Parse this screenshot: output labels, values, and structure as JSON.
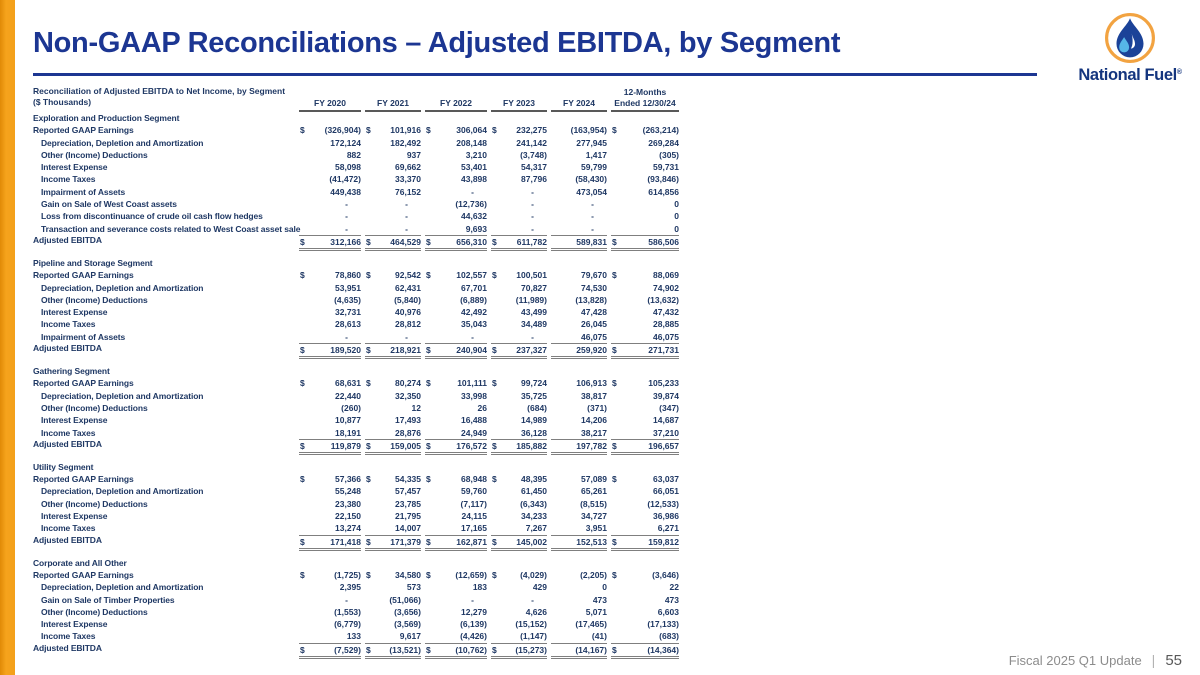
{
  "header": {
    "title": "Non-GAAP Reconciliations – Adjusted EBITDA, by Segment",
    "logo_text": "National Fuel",
    "logo_reg": "®"
  },
  "colors": {
    "title_blue": "#1c3692",
    "table_navy": "#1f3864",
    "accent_orange": "#f3a01a",
    "rule_gray": "#7f7f7f"
  },
  "table": {
    "caption_line1": "Reconciliation of Adjusted EBITDA to Net Income, by Segment",
    "caption_line2": "($ Thousands)",
    "dollar_columns": [
      true,
      true,
      true,
      true,
      false,
      true
    ],
    "columns": [
      {
        "line1": "",
        "line2": "FY 2020"
      },
      {
        "line1": "",
        "line2": "FY 2021"
      },
      {
        "line1": "",
        "line2": "FY 2022"
      },
      {
        "line1": "",
        "line2": "FY 2023"
      },
      {
        "line1": "",
        "line2": "FY 2024"
      },
      {
        "line1": "12-Months",
        "line2": "Ended 12/30/24"
      }
    ],
    "segments": [
      {
        "name": "Exploration and Production Segment",
        "rows": [
          {
            "label": "Reported GAAP Earnings",
            "indent": false,
            "dollar": true,
            "values": [
              "(326,904)",
              "101,916",
              "306,064",
              "232,275",
              "(163,954)",
              "(263,214)"
            ]
          },
          {
            "label": "Depreciation, Depletion and Amortization",
            "indent": true,
            "values": [
              "172,124",
              "182,492",
              "208,148",
              "241,142",
              "277,945",
              "269,284"
            ]
          },
          {
            "label": "Other (Income) Deductions",
            "indent": true,
            "values": [
              "882",
              "937",
              "3,210",
              "(3,748)",
              "1,417",
              "(305)"
            ]
          },
          {
            "label": "Interest Expense",
            "indent": true,
            "values": [
              "58,098",
              "69,662",
              "53,401",
              "54,317",
              "59,799",
              "59,731"
            ]
          },
          {
            "label": "Income Taxes",
            "indent": true,
            "values": [
              "(41,472)",
              "33,370",
              "43,898",
              "87,796",
              "(58,430)",
              "(93,846)"
            ]
          },
          {
            "label": "Impairment of Assets",
            "indent": true,
            "values": [
              "449,438",
              "76,152",
              "-",
              "-",
              "473,054",
              "614,856"
            ]
          },
          {
            "label": "Gain on Sale of West Coast assets",
            "indent": true,
            "values": [
              "-",
              "-",
              "(12,736)",
              "-",
              "-",
              "0"
            ]
          },
          {
            "label": "Loss from discontinuance of crude oil cash flow hedges",
            "indent": true,
            "values": [
              "-",
              "-",
              "44,632",
              "-",
              "-",
              "0"
            ]
          },
          {
            "label": "Transaction and severance costs related to West Coast asset sale",
            "indent": true,
            "values": [
              "-",
              "-",
              "9,693",
              "-",
              "-",
              "0"
            ]
          },
          {
            "label": "Adjusted EBITDA",
            "total": true,
            "dollar": true,
            "values": [
              "312,166",
              "464,529",
              "656,310",
              "611,782",
              "589,831",
              "586,506"
            ]
          }
        ]
      },
      {
        "name": "Pipeline and Storage Segment",
        "rows": [
          {
            "label": "Reported GAAP Earnings",
            "indent": false,
            "dollar": true,
            "values": [
              "78,860",
              "92,542",
              "102,557",
              "100,501",
              "79,670",
              "88,069"
            ]
          },
          {
            "label": "Depreciation, Depletion and Amortization",
            "indent": true,
            "values": [
              "53,951",
              "62,431",
              "67,701",
              "70,827",
              "74,530",
              "74,902"
            ]
          },
          {
            "label": "Other (Income) Deductions",
            "indent": true,
            "values": [
              "(4,635)",
              "(5,840)",
              "(6,889)",
              "(11,989)",
              "(13,828)",
              "(13,632)"
            ]
          },
          {
            "label": "Interest Expense",
            "indent": true,
            "values": [
              "32,731",
              "40,976",
              "42,492",
              "43,499",
              "47,428",
              "47,432"
            ]
          },
          {
            "label": "Income Taxes",
            "indent": true,
            "values": [
              "28,613",
              "28,812",
              "35,043",
              "34,489",
              "26,045",
              "28,885"
            ]
          },
          {
            "label": "Impairment of Assets",
            "indent": true,
            "values": [
              "-",
              "-",
              "-",
              "-",
              "46,075",
              "46,075"
            ]
          },
          {
            "label": "Adjusted EBITDA",
            "total": true,
            "dollar": true,
            "values": [
              "189,520",
              "218,921",
              "240,904",
              "237,327",
              "259,920",
              "271,731"
            ]
          }
        ]
      },
      {
        "name": "Gathering Segment",
        "rows": [
          {
            "label": "Reported GAAP Earnings",
            "indent": false,
            "dollar": true,
            "values": [
              "68,631",
              "80,274",
              "101,111",
              "99,724",
              "106,913",
              "105,233"
            ]
          },
          {
            "label": "Depreciation, Depletion and Amortization",
            "indent": true,
            "values": [
              "22,440",
              "32,350",
              "33,998",
              "35,725",
              "38,817",
              "39,874"
            ]
          },
          {
            "label": "Other (Income) Deductions",
            "indent": true,
            "values": [
              "(260)",
              "12",
              "26",
              "(684)",
              "(371)",
              "(347)"
            ]
          },
          {
            "label": "Interest Expense",
            "indent": true,
            "values": [
              "10,877",
              "17,493",
              "16,488",
              "14,989",
              "14,206",
              "14,687"
            ]
          },
          {
            "label": "Income Taxes",
            "indent": true,
            "values": [
              "18,191",
              "28,876",
              "24,949",
              "36,128",
              "38,217",
              "37,210"
            ]
          },
          {
            "label": "Adjusted EBITDA",
            "total": true,
            "dollar": true,
            "values": [
              "119,879",
              "159,005",
              "176,572",
              "185,882",
              "197,782",
              "196,657"
            ]
          }
        ]
      },
      {
        "name": "Utility Segment",
        "rows": [
          {
            "label": "Reported GAAP Earnings",
            "indent": false,
            "dollar": true,
            "values": [
              "57,366",
              "54,335",
              "68,948",
              "48,395",
              "57,089",
              "63,037"
            ]
          },
          {
            "label": "Depreciation, Depletion and Amortization",
            "indent": true,
            "values": [
              "55,248",
              "57,457",
              "59,760",
              "61,450",
              "65,261",
              "66,051"
            ]
          },
          {
            "label": "Other (Income) Deductions",
            "indent": true,
            "values": [
              "23,380",
              "23,785",
              "(7,117)",
              "(6,343)",
              "(8,515)",
              "(12,533)"
            ]
          },
          {
            "label": "Interest Expense",
            "indent": true,
            "values": [
              "22,150",
              "21,795",
              "24,115",
              "34,233",
              "34,727",
              "36,986"
            ]
          },
          {
            "label": "Income Taxes",
            "indent": true,
            "values": [
              "13,274",
              "14,007",
              "17,165",
              "7,267",
              "3,951",
              "6,271"
            ]
          },
          {
            "label": "Adjusted EBITDA",
            "total": true,
            "dollar": true,
            "values": [
              "171,418",
              "171,379",
              "162,871",
              "145,002",
              "152,513",
              "159,812"
            ]
          }
        ]
      },
      {
        "name": "Corporate and All Other",
        "rows": [
          {
            "label": "Reported GAAP Earnings",
            "indent": false,
            "dollar": true,
            "values": [
              "(1,725)",
              "34,580",
              "(12,659)",
              "(4,029)",
              "(2,205)",
              "(3,646)"
            ]
          },
          {
            "label": "Depreciation, Depletion and Amortization",
            "indent": true,
            "values": [
              "2,395",
              "573",
              "183",
              "429",
              "0",
              "22"
            ]
          },
          {
            "label": "Gain on Sale of Timber Properties",
            "indent": true,
            "values": [
              "-",
              "(51,066)",
              "-",
              "-",
              "473",
              "473"
            ]
          },
          {
            "label": "Other (Income) Deductions",
            "indent": true,
            "values": [
              "(1,553)",
              "(3,656)",
              "12,279",
              "4,626",
              "5,071",
              "6,603"
            ]
          },
          {
            "label": "Interest Expense",
            "indent": true,
            "values": [
              "(6,779)",
              "(3,569)",
              "(6,139)",
              "(15,152)",
              "(17,465)",
              "(17,133)"
            ]
          },
          {
            "label": "Income Taxes",
            "indent": true,
            "values": [
              "133",
              "9,617",
              "(4,426)",
              "(1,147)",
              "(41)",
              "(683)"
            ]
          },
          {
            "label": "Adjusted EBITDA",
            "total": true,
            "dollar": true,
            "values": [
              "(7,529)",
              "(13,521)",
              "(10,762)",
              "(15,273)",
              "(14,167)",
              "(14,364)"
            ]
          }
        ]
      }
    ]
  },
  "footer": {
    "label": "Fiscal 2025 Q1 Update",
    "separator": "|",
    "page": "55"
  }
}
